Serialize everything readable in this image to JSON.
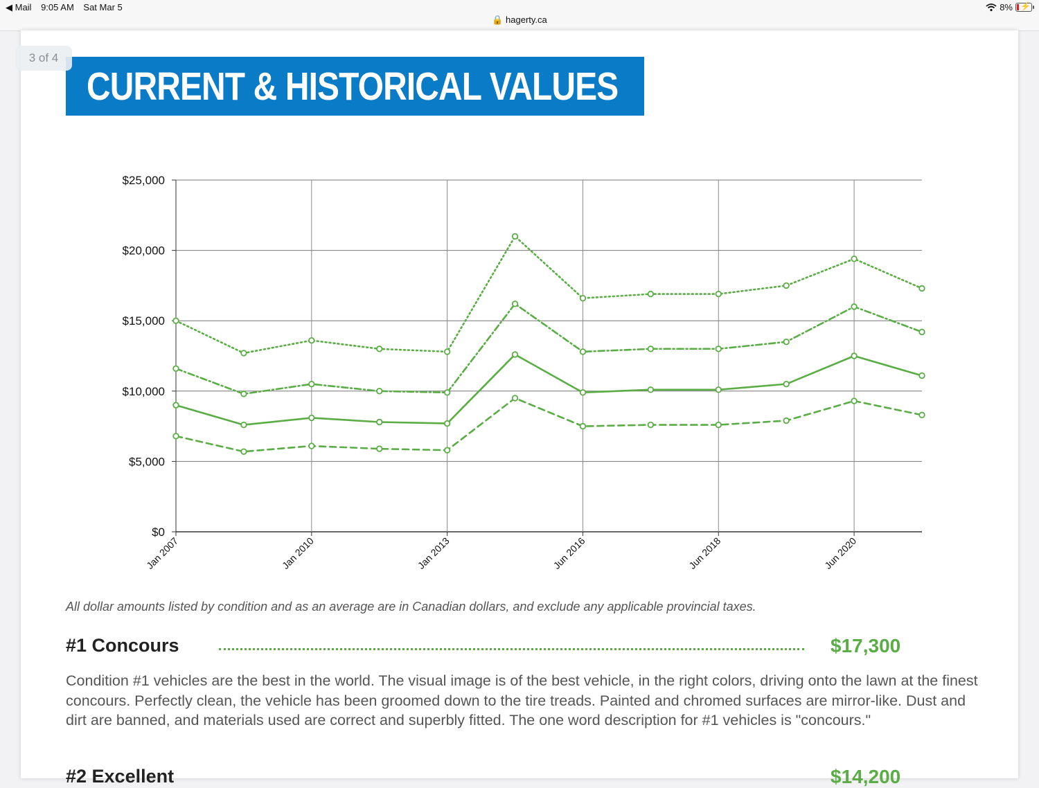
{
  "status_bar": {
    "back_app": "◀ Mail",
    "time": "9:05 AM",
    "date": "Sat Mar 5",
    "url": "hagerty.ca",
    "battery": "8%"
  },
  "page_indicator": "3 of 4",
  "banner_title": "CURRENT & HISTORICAL VALUES",
  "chart_data": {
    "type": "line",
    "title": "",
    "xlabel": "",
    "ylabel": "",
    "ylim": [
      0,
      25000
    ],
    "y_ticks": [
      "$25,000",
      "$20,000",
      "$15,000",
      "$10,000",
      "$5,000",
      "$0"
    ],
    "y_tick_values": [
      25000,
      20000,
      15000,
      10000,
      5000,
      0
    ],
    "x_tick_labels": [
      "Jan 2007",
      "Jan 2010",
      "Jan 2013",
      "Jun 2016",
      "Jun 2018",
      "Jun 2020"
    ],
    "x_tick_index": [
      0,
      2,
      4,
      6,
      8,
      10
    ],
    "point_count": 12,
    "grid": true,
    "series": [
      {
        "style": "dotted",
        "color": "#5aad45",
        "values": [
          15000,
          12700,
          13600,
          13000,
          12800,
          21000,
          16600,
          16900,
          16900,
          17500,
          19400,
          17300
        ]
      },
      {
        "style": "dashdot",
        "color": "#5aad45",
        "values": [
          11600,
          9800,
          10500,
          10000,
          9900,
          16200,
          12800,
          13000,
          13000,
          13500,
          16000,
          14200
        ]
      },
      {
        "style": "solid",
        "color": "#5aad45",
        "values": [
          9000,
          7600,
          8100,
          7800,
          7700,
          12600,
          9900,
          10100,
          10100,
          10500,
          12500,
          11100
        ]
      },
      {
        "style": "dashed",
        "color": "#5aad45",
        "values": [
          6800,
          5700,
          6100,
          5900,
          5800,
          9500,
          7500,
          7600,
          7600,
          7900,
          9300,
          8300
        ]
      }
    ]
  },
  "note": "All dollar amounts listed by condition and as an average are in Canadian dollars, and exclude any applicable provincial taxes.",
  "conditions": [
    {
      "title": "#1 Concours",
      "value": "$17,300",
      "description": "Condition #1 vehicles are the best in the world. The visual image is of the best vehicle, in the right colors, driving onto the lawn at the finest concours. Perfectly clean, the vehicle has been groomed down to the tire treads. Painted and chromed surfaces are mirror-like. Dust and dirt are banned, and materials used are correct and superbly fitted. The one word description for #1 vehicles is \"concours.\""
    },
    {
      "title": "#2 Excellent",
      "value": "$14,200"
    }
  ]
}
